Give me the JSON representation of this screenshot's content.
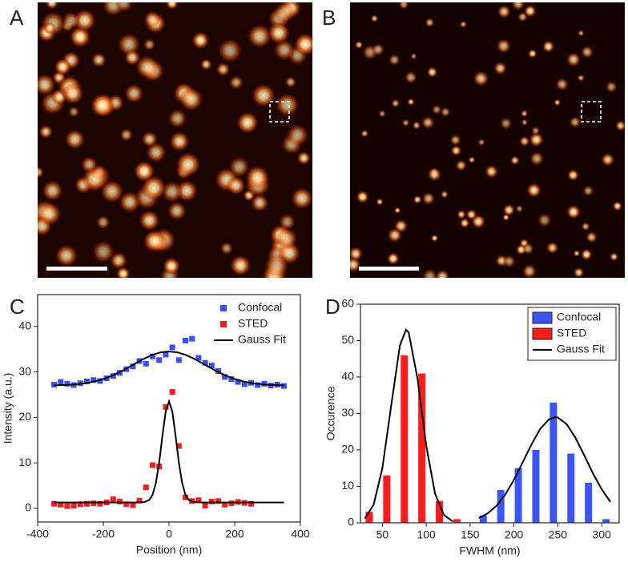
{
  "panel_labels": [
    "A",
    "B",
    "C",
    "D"
  ],
  "chart_data": [
    {
      "type": "scatter",
      "xlabel": "Position (nm)",
      "ylabel": "Intensity (a.u.)",
      "xlim": [
        -400,
        400
      ],
      "ylim": [
        -3,
        47
      ],
      "xticks": [
        -400,
        -200,
        0,
        200,
        400
      ],
      "yticks": [
        0,
        10,
        20,
        30,
        40
      ],
      "legend": "upper right",
      "legend_frame": false,
      "series": [
        {
          "name": "Confocal",
          "type": "scatter",
          "color": "#3a50f0",
          "x": [
            -350,
            -330,
            -310,
            -290,
            -270,
            -250,
            -230,
            -210,
            -190,
            -170,
            -150,
            -130,
            -110,
            -90,
            -70,
            -50,
            -30,
            -10,
            10,
            30,
            50,
            70,
            90,
            110,
            130,
            150,
            170,
            190,
            210,
            230,
            250,
            270,
            290,
            310,
            330,
            350
          ],
          "values": [
            27.2,
            27.8,
            27.4,
            27.1,
            27.5,
            27.9,
            28.2,
            28.0,
            28.6,
            29.1,
            29.8,
            30.6,
            31.2,
            32.4,
            31.8,
            33.4,
            32.6,
            33.8,
            35.4,
            32.6,
            36.9,
            37.3,
            33.1,
            32.0,
            31.4,
            30.2,
            28.9,
            28.4,
            27.8,
            27.3,
            27.6,
            27.1,
            27.4,
            27.0,
            27.2,
            26.9
          ]
        },
        {
          "name": "STED",
          "type": "scatter",
          "color": "#f02020",
          "x": [
            -350,
            -330,
            -310,
            -290,
            -270,
            -250,
            -230,
            -210,
            -190,
            -170,
            -150,
            -130,
            -110,
            -90,
            -70,
            -50,
            -30,
            -10,
            10,
            30,
            50,
            70,
            90,
            110,
            130,
            150,
            170,
            190,
            210,
            230,
            250
          ],
          "values": [
            1.0,
            0.8,
            0.5,
            0.6,
            0.9,
            1.0,
            1.1,
            1.0,
            1.3,
            2.0,
            1.5,
            0.9,
            0.7,
            1.7,
            4.6,
            9.5,
            9.2,
            22.3,
            25.6,
            13.7,
            2.4,
            1.6,
            1.8,
            0.6,
            1.5,
            1.6,
            0.8,
            1.1,
            1.4,
            1.2,
            1.0
          ]
        },
        {
          "name": "Gauss Fit",
          "type": "line",
          "color": "#000000",
          "x": [
            -350,
            -325,
            -300,
            -275,
            -250,
            -225,
            -200,
            -175,
            -150,
            -125,
            -100,
            -75,
            -50,
            -25,
            0,
            25,
            50,
            75,
            100,
            125,
            150,
            175,
            200,
            225,
            250,
            275,
            300,
            325,
            350,
            null,
            -350,
            -100,
            -75,
            -60,
            -50,
            -40,
            -30,
            -20,
            -10,
            0,
            10,
            20,
            30,
            40,
            50,
            60,
            75,
            100,
            350
          ],
          "values": [
            27.05,
            27.1,
            27.18,
            27.33,
            27.57,
            27.93,
            28.44,
            29.12,
            29.96,
            30.93,
            31.96,
            32.94,
            33.76,
            34.31,
            34.5,
            34.31,
            33.76,
            32.94,
            31.96,
            30.93,
            29.96,
            29.12,
            28.44,
            27.93,
            27.57,
            27.33,
            27.18,
            27.1,
            27.05,
            null,
            1.3,
            1.3,
            1.37,
            1.84,
            2.98,
            5.55,
            10.06,
            15.99,
            21.32,
            23.5,
            21.32,
            15.99,
            10.06,
            5.55,
            2.98,
            1.84,
            1.37,
            1.3,
            1.3
          ]
        }
      ]
    },
    {
      "type": "bar",
      "xlabel": "FWHM (nm)",
      "ylabel": "Occurence",
      "xlim": [
        25,
        320
      ],
      "ylim": [
        0,
        60
      ],
      "xticks": [
        50,
        100,
        150,
        200,
        250,
        300
      ],
      "yticks": [
        0,
        10,
        20,
        30,
        40,
        50,
        60
      ],
      "legend": "upper right",
      "legend_frame": true,
      "series": [
        {
          "name": "Confocal",
          "type": "bar",
          "color": "#3b55f5",
          "x": [
            165,
            185,
            205,
            225,
            245,
            265,
            285,
            305
          ],
          "values": [
            2,
            9,
            15,
            20,
            33,
            19,
            11,
            1
          ]
        },
        {
          "name": "STED",
          "type": "bar",
          "color": "#ff1c1c",
          "x": [
            35,
            55,
            75,
            95,
            115,
            135
          ],
          "values": [
            3,
            13,
            46,
            41,
            6,
            1
          ]
        },
        {
          "name": "Gauss Fit",
          "type": "line",
          "color": "#000000",
          "x": [
            30,
            40,
            50,
            60,
            70,
            77,
            80,
            90,
            100,
            110,
            120,
            130,
            null,
            160,
            170,
            180,
            190,
            200,
            210,
            220,
            230,
            240,
            247,
            250,
            260,
            270,
            280,
            290,
            300,
            310
          ],
          "values": [
            1.16,
            4.96,
            15.0,
            32.1,
            48.7,
            53,
            52.2,
            39.6,
            21.2,
            8.06,
            2.16,
            0.41,
            null,
            1.32,
            2.58,
            4.64,
            7.7,
            11.8,
            16.6,
            21.5,
            25.8,
            28.4,
            29,
            28.9,
            27.1,
            23.4,
            18.6,
            13.6,
            9.21,
            5.74
          ]
        }
      ]
    }
  ]
}
